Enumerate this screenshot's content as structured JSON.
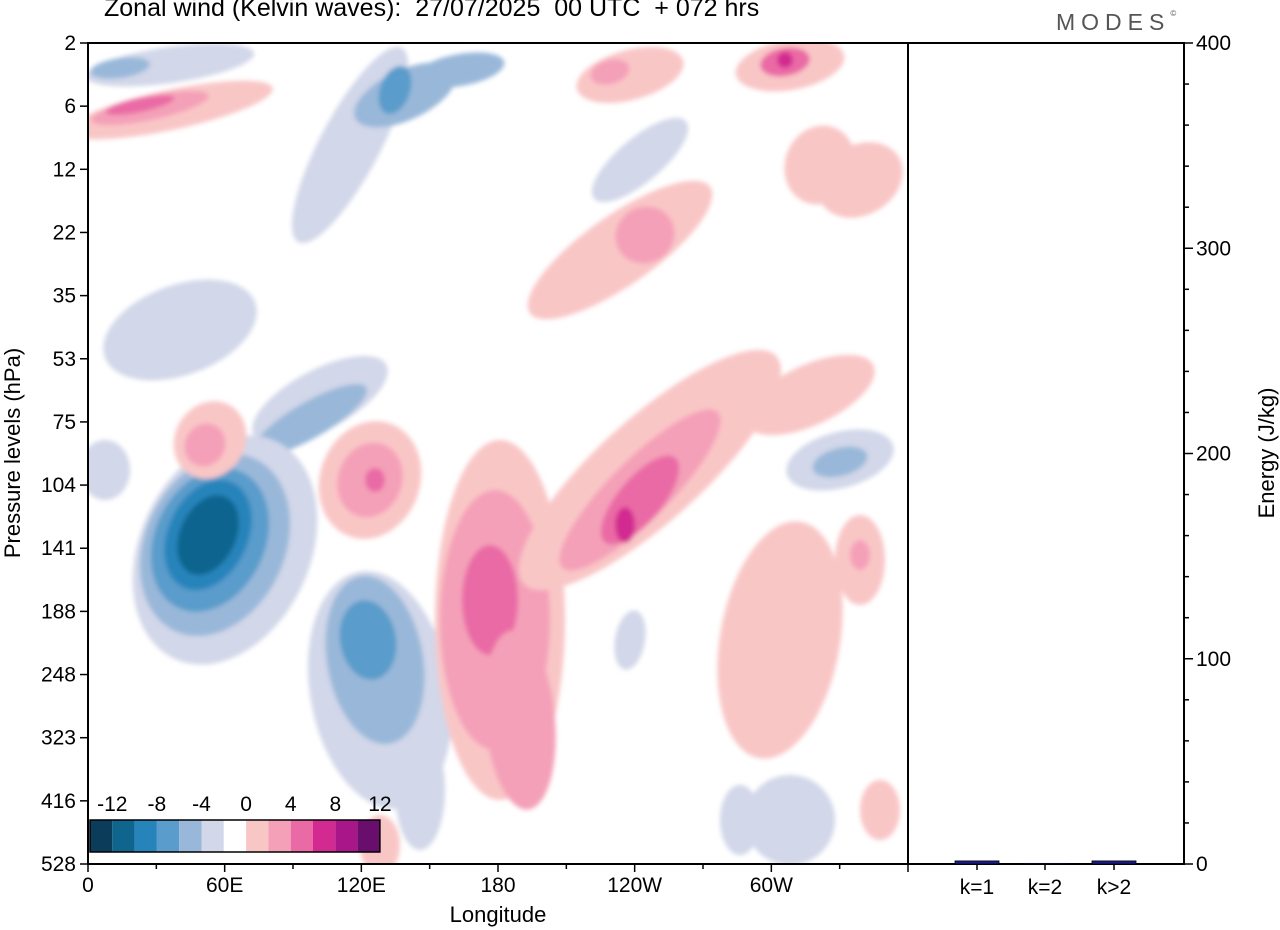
{
  "title": "Zonal wind (Kelvin waves):  27/07/2025  00 UTC  + 072 hrs",
  "brand": "MODES",
  "brand_mark": "©",
  "chart_data": [
    {
      "type": "heatmap",
      "title": "Zonal wind (Kelvin waves):  27/07/2025  00 UTC  + 072 hrs",
      "xlabel": "Longitude",
      "ylabel": "Pressure levels (hPa)",
      "x_ticks": [
        "0",
        "60E",
        "120E",
        "180",
        "120W",
        "60W"
      ],
      "x_tick_degrees": [
        0,
        60,
        120,
        180,
        240,
        300
      ],
      "x_range_degrees": [
        0,
        360
      ],
      "y_ticks": [
        "2",
        "6",
        "12",
        "22",
        "35",
        "53",
        "75",
        "104",
        "141",
        "188",
        "248",
        "323",
        "416",
        "528"
      ],
      "y_axis": "pressure levels, top to bottom",
      "colorbar": {
        "labels": [
          "-12",
          "-8",
          "-4",
          "0",
          "4",
          "8",
          "12"
        ],
        "levels": [
          -14,
          -12,
          -10,
          -8,
          -6,
          -4,
          -2,
          2,
          4,
          6,
          8,
          10,
          12,
          14
        ],
        "colors": [
          "#0b3d5a",
          "#10658f",
          "#2784bb",
          "#5a9ccb",
          "#99b8d9",
          "#d2d7e9",
          "#ffffff",
          "#f9c6c6",
          "#f4a0b8",
          "#ea6aa5",
          "#d22a90",
          "#a8168a",
          "#6a0e6e"
        ]
      },
      "features": [
        {
          "name": "upper-left positive band",
          "lon_range": [
            0,
            80
          ],
          "levels": [
            "2",
            "12"
          ],
          "max_value": 10
        },
        {
          "name": "upper negative streak",
          "lon_range": [
            100,
            170
          ],
          "levels": [
            "2",
            "22"
          ],
          "max_value": -6
        },
        {
          "name": "negative core",
          "lon_range": [
            30,
            90
          ],
          "levels": [
            "75",
            "248"
          ],
          "max_value": -14
        },
        {
          "name": "negative core 2",
          "lon_range": [
            105,
            150
          ],
          "levels": [
            "141",
            "416"
          ],
          "max_value": -10
        },
        {
          "name": "positive core",
          "lon_range": [
            160,
            210
          ],
          "levels": [
            "104",
            "416"
          ],
          "max_value": 8
        },
        {
          "name": "positive tilted band",
          "lon_range": [
            200,
            290
          ],
          "levels": [
            "53",
            "188"
          ],
          "max_value": 10
        },
        {
          "name": "upper-right positive",
          "lon_range": [
            300,
            340
          ],
          "levels": [
            "2",
            "6"
          ],
          "max_value": 12
        }
      ]
    },
    {
      "type": "bar",
      "title": "",
      "xlabel": "",
      "ylabel": "Energy (J/kg)",
      "categories": [
        "k=1",
        "k=2",
        "k>2"
      ],
      "values": [
        1.5,
        0.3,
        1.5
      ],
      "ylim": [
        0,
        400
      ],
      "y_ticks": [
        "0",
        "100",
        "200",
        "300",
        "400"
      ],
      "bar_color": "#1a1a8c"
    }
  ]
}
